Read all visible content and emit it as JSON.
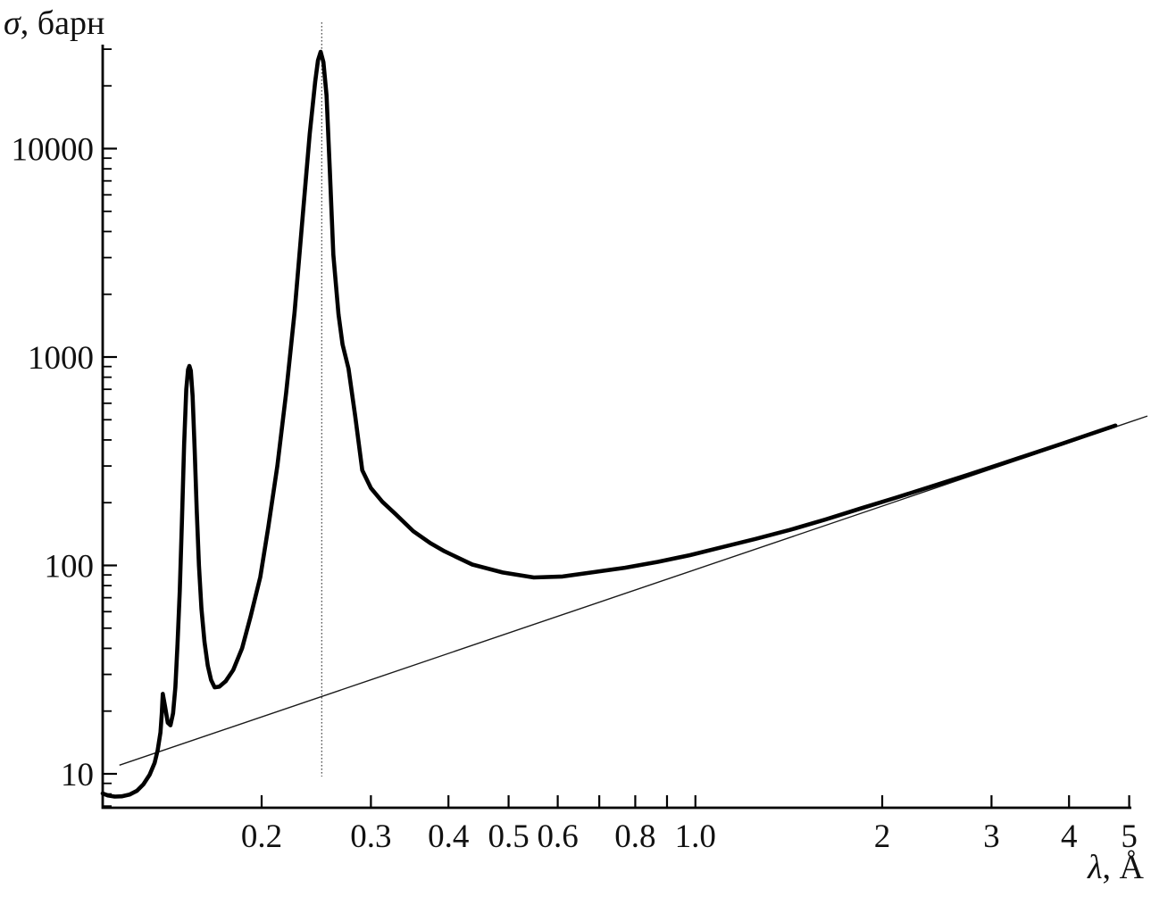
{
  "figure": {
    "y_symbol": "σ",
    "y_rest": ", барн",
    "x_symbol": "λ",
    "x_rest": ", Å"
  },
  "chart_data": {
    "type": "line",
    "title": "",
    "xlabel": "λ, Å",
    "ylabel": "σ, барн",
    "x_scale": "log",
    "y_scale": "log",
    "xlim": [
      0.111,
      5.04
    ],
    "ylim": [
      6.9,
      31600
    ],
    "grid": "off",
    "legend_position": "none",
    "x_ticks": [
      {
        "value": 0.2,
        "label": "0.2"
      },
      {
        "value": 0.3,
        "label": "0.3"
      },
      {
        "value": 0.4,
        "label": "0.4"
      },
      {
        "value": 0.5,
        "label": "0.5"
      },
      {
        "value": 0.6,
        "label": "0.6"
      },
      {
        "value": 0.7,
        "label": ""
      },
      {
        "value": 0.8,
        "label": "0.8"
      },
      {
        "value": 0.9,
        "label": ""
      },
      {
        "value": 1.0,
        "label": "1.0"
      },
      {
        "value": 2,
        "label": "2"
      },
      {
        "value": 3,
        "label": "3"
      },
      {
        "value": 4,
        "label": "4"
      },
      {
        "value": 5,
        "label": "5"
      }
    ],
    "y_ticks": [
      {
        "value": 10,
        "label": "10"
      },
      {
        "value": 100,
        "label": "100"
      },
      {
        "value": 1000,
        "label": "1000"
      },
      {
        "value": 10000,
        "label": "10000"
      }
    ],
    "vertical_guide_lambda": 0.25,
    "colors": {
      "curve": "#000000",
      "line": "#1a1a1a",
      "guide": "#555555",
      "axis": "#000000"
    },
    "series": [
      {
        "name": "total cross section (thick curve)",
        "style": "thick",
        "points": [
          [
            0.1109,
            8.05
          ],
          [
            0.113,
            7.88
          ],
          [
            0.116,
            7.78
          ],
          [
            0.119,
            7.8
          ],
          [
            0.1225,
            7.95
          ],
          [
            0.126,
            8.3
          ],
          [
            0.129,
            8.9
          ],
          [
            0.132,
            9.9
          ],
          [
            0.1345,
            11.3
          ],
          [
            0.136,
            13.0
          ],
          [
            0.1374,
            15.8
          ],
          [
            0.1381,
            19.5
          ],
          [
            0.1386,
            24.2
          ],
          [
            0.1398,
            21.0
          ],
          [
            0.1412,
            17.6
          ],
          [
            0.1426,
            17.1
          ],
          [
            0.144,
            19.5
          ],
          [
            0.1452,
            26
          ],
          [
            0.1464,
            42
          ],
          [
            0.1476,
            75
          ],
          [
            0.1488,
            160
          ],
          [
            0.15,
            380
          ],
          [
            0.1512,
            700
          ],
          [
            0.1522,
            870
          ],
          [
            0.153,
            906
          ],
          [
            0.1538,
            860
          ],
          [
            0.1548,
            650
          ],
          [
            0.156,
            360
          ],
          [
            0.1572,
            185
          ],
          [
            0.1585,
            100
          ],
          [
            0.16,
            62
          ],
          [
            0.1618,
            43
          ],
          [
            0.1638,
            33
          ],
          [
            0.1658,
            28.2
          ],
          [
            0.168,
            26.0
          ],
          [
            0.171,
            26.2
          ],
          [
            0.175,
            27.8
          ],
          [
            0.18,
            31.5
          ],
          [
            0.186,
            40
          ],
          [
            0.192,
            57
          ],
          [
            0.199,
            88
          ],
          [
            0.205,
            153
          ],
          [
            0.212,
            300
          ],
          [
            0.219,
            670
          ],
          [
            0.226,
            1640
          ],
          [
            0.233,
            4800
          ],
          [
            0.239,
            11700
          ],
          [
            0.244,
            21000
          ],
          [
            0.2465,
            26500
          ],
          [
            0.249,
            29150
          ],
          [
            0.2515,
            26000
          ],
          [
            0.2545,
            18000
          ],
          [
            0.2575,
            8000
          ],
          [
            0.261,
            3100
          ],
          [
            0.266,
            1600
          ],
          [
            0.27,
            1150
          ],
          [
            0.2761,
            880
          ],
          [
            0.283,
            520
          ],
          [
            0.2905,
            286
          ],
          [
            0.3,
            235
          ],
          [
            0.313,
            202
          ],
          [
            0.329,
            176
          ],
          [
            0.351,
            146
          ],
          [
            0.374,
            128
          ],
          [
            0.394,
            117
          ],
          [
            0.437,
            101
          ],
          [
            0.489,
            92.5
          ],
          [
            0.549,
            87.5
          ],
          [
            0.611,
            88.5
          ],
          [
            0.68,
            92.5
          ],
          [
            0.77,
            97.5
          ],
          [
            0.87,
            104
          ],
          [
            0.98,
            112
          ],
          [
            1.1,
            122
          ],
          [
            1.25,
            134
          ],
          [
            1.42,
            148
          ],
          [
            1.62,
            166
          ],
          [
            1.85,
            188
          ],
          [
            2.1,
            211
          ],
          [
            2.4,
            239
          ],
          [
            2.75,
            272
          ],
          [
            3.1,
            306
          ],
          [
            3.5,
            345
          ],
          [
            3.9,
            384
          ],
          [
            4.3,
            424
          ],
          [
            4.75,
            469
          ]
        ]
      },
      {
        "name": "1/v absorption law (thin straight line, σ ∝ λ)",
        "style": "thin",
        "points": [
          [
            0.118,
            11.0
          ],
          [
            5.35,
            521
          ]
        ]
      }
    ],
    "annotations": [
      {
        "feature": "narrow resonance peak",
        "lambda": 0.153,
        "sigma": 900
      },
      {
        "feature": "main resonance peak",
        "lambda": 0.249,
        "sigma": 29000
      },
      {
        "feature": "broad minimum",
        "lambda": 0.55,
        "sigma": 88
      },
      {
        "feature": "dotted vertical guide through main resonance",
        "lambda": 0.25
      }
    ]
  }
}
